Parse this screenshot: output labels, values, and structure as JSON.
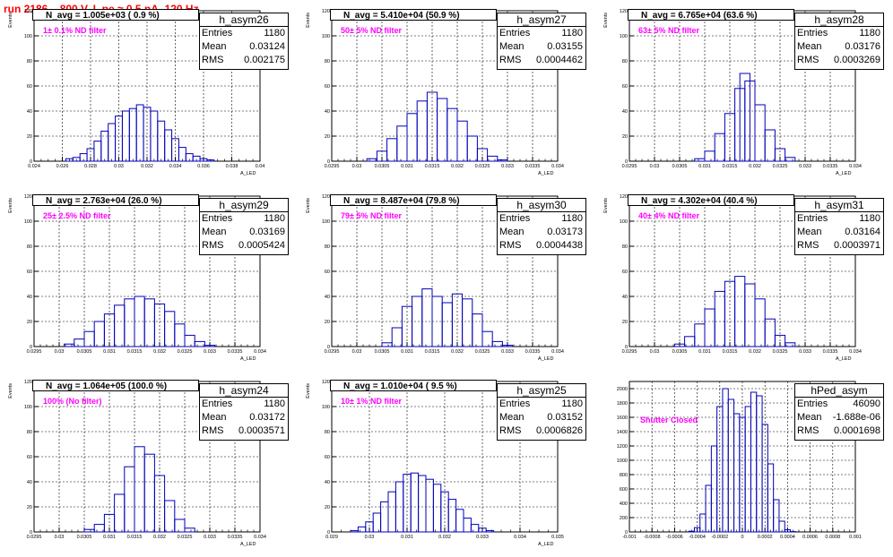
{
  "run_title": "run 2186,   800 V, I_pe ≈ 0.5 nA, 120 Hz",
  "chart_data": [
    {
      "type": "histogram",
      "name": "h_asym26",
      "navg_text": "N_avg = 1.005e+03 ( 0.9 %)",
      "note": "1± 0.1% ND filter",
      "ylabel": "Events",
      "xlabel": "A_LED",
      "ylim": [
        0,
        120
      ],
      "yticks": [
        0,
        20,
        40,
        60,
        80,
        100,
        120
      ],
      "xlim": [
        0.024,
        0.04
      ],
      "xticks": [
        "0.024",
        "0.026",
        "0.028",
        "0.03",
        "0.032",
        "0.034",
        "0.036",
        "0.038",
        "0.04"
      ],
      "stats": {
        "Entries": "1180",
        "Mean": "0.03124",
        "RMS": "0.002175"
      },
      "bins": [
        {
          "x": 0.0265,
          "y": 2
        },
        {
          "x": 0.027,
          "y": 3
        },
        {
          "x": 0.0275,
          "y": 6
        },
        {
          "x": 0.028,
          "y": 10
        },
        {
          "x": 0.0285,
          "y": 16
        },
        {
          "x": 0.029,
          "y": 24
        },
        {
          "x": 0.0295,
          "y": 30
        },
        {
          "x": 0.03,
          "y": 36
        },
        {
          "x": 0.0305,
          "y": 40
        },
        {
          "x": 0.031,
          "y": 42
        },
        {
          "x": 0.0315,
          "y": 45
        },
        {
          "x": 0.032,
          "y": 43
        },
        {
          "x": 0.0325,
          "y": 40
        },
        {
          "x": 0.033,
          "y": 32
        },
        {
          "x": 0.0335,
          "y": 25
        },
        {
          "x": 0.034,
          "y": 18
        },
        {
          "x": 0.0345,
          "y": 11
        },
        {
          "x": 0.035,
          "y": 6
        },
        {
          "x": 0.0355,
          "y": 4
        },
        {
          "x": 0.036,
          "y": 2
        },
        {
          "x": 0.0365,
          "y": 1
        }
      ]
    },
    {
      "type": "histogram",
      "name": "h_asym27",
      "navg_text": "N_avg = 5.410e+04 (50.9 %)",
      "note": "50± 5% ND filter",
      "ylabel": "Events",
      "xlabel": "A_LED",
      "ylim": [
        0,
        120
      ],
      "yticks": [
        0,
        20,
        40,
        60,
        80,
        100,
        120
      ],
      "xlim": [
        0.0295,
        0.034
      ],
      "xticks": [
        "0.0295",
        "0.03",
        "0.0305",
        "0.031",
        "0.0315",
        "0.032",
        "0.0325",
        "0.033",
        "0.0335",
        "0.034"
      ],
      "stats": {
        "Entries": "1180",
        "Mean": "0.03155",
        "RMS": "0.0004462"
      },
      "bins": [
        {
          "x": 0.0303,
          "y": 2
        },
        {
          "x": 0.0305,
          "y": 8
        },
        {
          "x": 0.0307,
          "y": 18
        },
        {
          "x": 0.0309,
          "y": 28
        },
        {
          "x": 0.0311,
          "y": 38
        },
        {
          "x": 0.0313,
          "y": 48
        },
        {
          "x": 0.0315,
          "y": 55
        },
        {
          "x": 0.0317,
          "y": 50
        },
        {
          "x": 0.0319,
          "y": 42
        },
        {
          "x": 0.0321,
          "y": 32
        },
        {
          "x": 0.0323,
          "y": 20
        },
        {
          "x": 0.0325,
          "y": 10
        },
        {
          "x": 0.0327,
          "y": 4
        },
        {
          "x": 0.0329,
          "y": 1
        }
      ]
    },
    {
      "type": "histogram",
      "name": "h_asym28",
      "navg_text": "N_avg = 6.765e+04 (63.6 %)",
      "note": "63± 5% ND filter",
      "ylabel": "Events",
      "xlabel": "A_LED",
      "ylim": [
        0,
        120
      ],
      "yticks": [
        0,
        20,
        40,
        60,
        80,
        100,
        120
      ],
      "xlim": [
        0.0295,
        0.034
      ],
      "xticks": [
        "0.0295",
        "0.03",
        "0.0305",
        "0.031",
        "0.0315",
        "0.032",
        "0.0325",
        "0.033",
        "0.0335",
        "0.034"
      ],
      "stats": {
        "Entries": "1180",
        "Mean": "0.03176",
        "RMS": "0.0003269"
      },
      "bins": [
        {
          "x": 0.0309,
          "y": 2
        },
        {
          "x": 0.0311,
          "y": 8
        },
        {
          "x": 0.0313,
          "y": 22
        },
        {
          "x": 0.0315,
          "y": 38
        },
        {
          "x": 0.0317,
          "y": 58
        },
        {
          "x": 0.0318,
          "y": 70
        },
        {
          "x": 0.0319,
          "y": 64
        },
        {
          "x": 0.0321,
          "y": 45
        },
        {
          "x": 0.0323,
          "y": 25
        },
        {
          "x": 0.0325,
          "y": 10
        },
        {
          "x": 0.0327,
          "y": 3
        }
      ]
    },
    {
      "type": "histogram",
      "name": "h_asym29",
      "navg_text": "N_avg = 2.763e+04 (26.0 %)",
      "note": "25± 2.5% ND filter",
      "ylabel": "Events",
      "xlabel": "A_LED",
      "ylim": [
        0,
        120
      ],
      "yticks": [
        0,
        20,
        40,
        60,
        80,
        100,
        120
      ],
      "xlim": [
        0.0295,
        0.034
      ],
      "xticks": [
        "0.0295",
        "0.03",
        "0.0305",
        "0.031",
        "0.0315",
        "0.032",
        "0.0325",
        "0.033",
        "0.0335",
        "0.034"
      ],
      "stats": {
        "Entries": "1180",
        "Mean": "0.03169",
        "RMS": "0.0005424"
      },
      "bins": [
        {
          "x": 0.0302,
          "y": 2
        },
        {
          "x": 0.0304,
          "y": 6
        },
        {
          "x": 0.0306,
          "y": 12
        },
        {
          "x": 0.0308,
          "y": 20
        },
        {
          "x": 0.031,
          "y": 26
        },
        {
          "x": 0.0312,
          "y": 33
        },
        {
          "x": 0.0314,
          "y": 38
        },
        {
          "x": 0.0316,
          "y": 40
        },
        {
          "x": 0.0318,
          "y": 38
        },
        {
          "x": 0.032,
          "y": 34
        },
        {
          "x": 0.0322,
          "y": 28
        },
        {
          "x": 0.0324,
          "y": 18
        },
        {
          "x": 0.0326,
          "y": 9
        },
        {
          "x": 0.0328,
          "y": 4
        },
        {
          "x": 0.033,
          "y": 1
        }
      ]
    },
    {
      "type": "histogram",
      "name": "h_asym30",
      "navg_text": "N_avg = 8.487e+04 (79.8 %)",
      "note": "79± 5% ND filter",
      "ylabel": "Events",
      "xlabel": "A_LED",
      "ylim": [
        0,
        120
      ],
      "yticks": [
        0,
        20,
        40,
        60,
        80,
        100,
        120
      ],
      "xlim": [
        0.0295,
        0.034
      ],
      "xticks": [
        "0.0295",
        "0.03",
        "0.0305",
        "0.031",
        "0.0315",
        "0.032",
        "0.0325",
        "0.033",
        "0.0335",
        "0.034"
      ],
      "stats": {
        "Entries": "1180",
        "Mean": "0.03173",
        "RMS": "0.0004438"
      },
      "bins": [
        {
          "x": 0.0306,
          "y": 3
        },
        {
          "x": 0.0308,
          "y": 15
        },
        {
          "x": 0.031,
          "y": 32
        },
        {
          "x": 0.0312,
          "y": 40
        },
        {
          "x": 0.0314,
          "y": 46
        },
        {
          "x": 0.0316,
          "y": 40
        },
        {
          "x": 0.0318,
          "y": 35
        },
        {
          "x": 0.032,
          "y": 42
        },
        {
          "x": 0.0322,
          "y": 38
        },
        {
          "x": 0.0324,
          "y": 26
        },
        {
          "x": 0.0326,
          "y": 12
        },
        {
          "x": 0.0328,
          "y": 4
        },
        {
          "x": 0.033,
          "y": 1
        }
      ]
    },
    {
      "type": "histogram",
      "name": "h_asym31",
      "navg_text": "N_avg = 4.302e+04 (40.4 %)",
      "note": "40± 4% ND filter",
      "ylabel": "Events",
      "xlabel": "A_LED",
      "ylim": [
        0,
        120
      ],
      "yticks": [
        0,
        20,
        40,
        60,
        80,
        100,
        120
      ],
      "xlim": [
        0.0295,
        0.034
      ],
      "xticks": [
        "0.0295",
        "0.03",
        "0.0305",
        "0.031",
        "0.0315",
        "0.032",
        "0.0325",
        "0.033",
        "0.0335",
        "0.034"
      ],
      "stats": {
        "Entries": "1180",
        "Mean": "0.03164",
        "RMS": "0.0003971"
      },
      "bins": [
        {
          "x": 0.0305,
          "y": 2
        },
        {
          "x": 0.0307,
          "y": 8
        },
        {
          "x": 0.0309,
          "y": 18
        },
        {
          "x": 0.0311,
          "y": 30
        },
        {
          "x": 0.0313,
          "y": 44
        },
        {
          "x": 0.0315,
          "y": 52
        },
        {
          "x": 0.0317,
          "y": 56
        },
        {
          "x": 0.0319,
          "y": 50
        },
        {
          "x": 0.0321,
          "y": 38
        },
        {
          "x": 0.0323,
          "y": 22
        },
        {
          "x": 0.0325,
          "y": 9
        },
        {
          "x": 0.0327,
          "y": 3
        }
      ]
    },
    {
      "type": "histogram",
      "name": "h_asym24",
      "navg_text": "N_avg = 1.064e+05 (100.0 %)",
      "note": "100% (No filter)",
      "ylabel": "Events",
      "xlabel": "A_LED",
      "ylim": [
        0,
        120
      ],
      "yticks": [
        0,
        20,
        40,
        60,
        80,
        100,
        120
      ],
      "xlim": [
        0.0295,
        0.034
      ],
      "xticks": [
        "0.0295",
        "0.03",
        "0.0305",
        "0.031",
        "0.0315",
        "0.032",
        "0.0325",
        "0.033",
        "0.0335",
        "0.034"
      ],
      "stats": {
        "Entries": "1180",
        "Mean": "0.03172",
        "RMS": "0.0003571"
      },
      "bins": [
        {
          "x": 0.0306,
          "y": 2
        },
        {
          "x": 0.0308,
          "y": 6
        },
        {
          "x": 0.031,
          "y": 14
        },
        {
          "x": 0.0312,
          "y": 30
        },
        {
          "x": 0.0314,
          "y": 52
        },
        {
          "x": 0.0316,
          "y": 68
        },
        {
          "x": 0.0318,
          "y": 62
        },
        {
          "x": 0.032,
          "y": 45
        },
        {
          "x": 0.0322,
          "y": 25
        },
        {
          "x": 0.0324,
          "y": 10
        },
        {
          "x": 0.0326,
          "y": 3
        }
      ]
    },
    {
      "type": "histogram",
      "name": "h_asym25",
      "navg_text": "N_avg = 1.010e+04 ( 9.5 %)",
      "note": "10± 1% ND filter",
      "ylabel": "Events",
      "xlabel": "A_LED",
      "ylim": [
        0,
        120
      ],
      "yticks": [
        0,
        20,
        40,
        60,
        80,
        100,
        120
      ],
      "xlim": [
        0.029,
        0.035
      ],
      "xticks": [
        "0.029",
        "0.03",
        "0.031",
        "0.032",
        "0.033",
        "0.034",
        "0.035"
      ],
      "stats": {
        "Entries": "1180",
        "Mean": "0.03152",
        "RMS": "0.0006826"
      },
      "bins": [
        {
          "x": 0.0296,
          "y": 1
        },
        {
          "x": 0.0298,
          "y": 4
        },
        {
          "x": 0.03,
          "y": 8
        },
        {
          "x": 0.0302,
          "y": 15
        },
        {
          "x": 0.0304,
          "y": 24
        },
        {
          "x": 0.0306,
          "y": 32
        },
        {
          "x": 0.0308,
          "y": 40
        },
        {
          "x": 0.031,
          "y": 46
        },
        {
          "x": 0.0312,
          "y": 47
        },
        {
          "x": 0.0314,
          "y": 45
        },
        {
          "x": 0.0316,
          "y": 42
        },
        {
          "x": 0.0318,
          "y": 38
        },
        {
          "x": 0.032,
          "y": 32
        },
        {
          "x": 0.0322,
          "y": 26
        },
        {
          "x": 0.0324,
          "y": 18
        },
        {
          "x": 0.0326,
          "y": 11
        },
        {
          "x": 0.0328,
          "y": 6
        },
        {
          "x": 0.033,
          "y": 3
        },
        {
          "x": 0.0332,
          "y": 1
        }
      ]
    },
    {
      "type": "histogram",
      "name": "hPed_asym",
      "navg_text": "",
      "note": "Shutter Closed",
      "ylabel": "",
      "xlabel": "",
      "ylim": [
        0,
        2100
      ],
      "yticks": [
        0,
        200,
        400,
        600,
        800,
        1000,
        1200,
        1400,
        1600,
        1800,
        2000
      ],
      "xlim": [
        -0.001,
        0.001
      ],
      "xticks": [
        "-0.001",
        "-0.0008",
        "-0.0006",
        "-0.0004",
        "-0.0002",
        "0",
        "0.0002",
        "0.0004",
        "0.0006",
        "0.0008",
        "0.001"
      ],
      "stats": {
        "Entries": "46090",
        "Mean": "-1.688e-06",
        "RMS": "0.0001698"
      },
      "bins": [
        {
          "x": -0.00045,
          "y": 10
        },
        {
          "x": -0.0004,
          "y": 60
        },
        {
          "x": -0.00035,
          "y": 250
        },
        {
          "x": -0.0003,
          "y": 650
        },
        {
          "x": -0.00025,
          "y": 1200
        },
        {
          "x": -0.0002,
          "y": 1750
        },
        {
          "x": -0.00015,
          "y": 2000
        },
        {
          "x": -0.0001,
          "y": 1850
        },
        {
          "x": -5e-05,
          "y": 1650
        },
        {
          "x": 0,
          "y": 1600
        },
        {
          "x": 5e-05,
          "y": 1750
        },
        {
          "x": 0.0001,
          "y": 1950
        },
        {
          "x": 0.00015,
          "y": 1900
        },
        {
          "x": 0.0002,
          "y": 1500
        },
        {
          "x": 0.00025,
          "y": 950
        },
        {
          "x": 0.0003,
          "y": 450
        },
        {
          "x": 0.00035,
          "y": 150
        },
        {
          "x": 0.0004,
          "y": 30
        },
        {
          "x": 0.00045,
          "y": 5
        }
      ]
    }
  ]
}
